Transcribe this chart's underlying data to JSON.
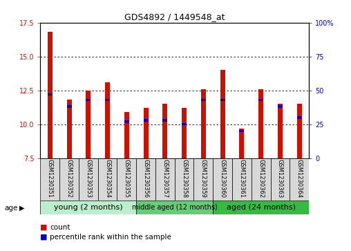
{
  "title": "GDS4892 / 1449548_at",
  "samples": [
    "GSM1230351",
    "GSM1230352",
    "GSM1230353",
    "GSM1230354",
    "GSM1230355",
    "GSM1230356",
    "GSM1230357",
    "GSM1230358",
    "GSM1230359",
    "GSM1230360",
    "GSM1230361",
    "GSM1230362",
    "GSM1230363",
    "GSM1230364"
  ],
  "count_values": [
    16.8,
    11.8,
    12.5,
    13.1,
    10.9,
    11.2,
    11.5,
    11.2,
    12.6,
    14.0,
    9.7,
    12.6,
    11.5,
    11.5
  ],
  "percentile_values": [
    47,
    38,
    43,
    43,
    27,
    28,
    28,
    25,
    43,
    43,
    20,
    43,
    38,
    30
  ],
  "ymin": 7.5,
  "ymax": 17.5,
  "yticks_left": [
    7.5,
    10.0,
    12.5,
    15.0,
    17.5
  ],
  "yticks_right": [
    0,
    25,
    50,
    75,
    100
  ],
  "bar_color": "#CC1100",
  "percentile_color": "#0000CC",
  "bar_width": 0.25,
  "blue_bar_height": 0.18,
  "groups": [
    {
      "label": "young (2 months)",
      "start": 0,
      "end": 5,
      "color": "#BBEECC"
    },
    {
      "label": "middle aged (12 months)",
      "start": 5,
      "end": 9,
      "color": "#66CC77"
    },
    {
      "label": "aged (24 months)",
      "start": 9,
      "end": 14,
      "color": "#33BB44"
    }
  ],
  "legend_count": "count",
  "legend_percentile": "percentile rank within the sample",
  "background_color": "#ffffff"
}
